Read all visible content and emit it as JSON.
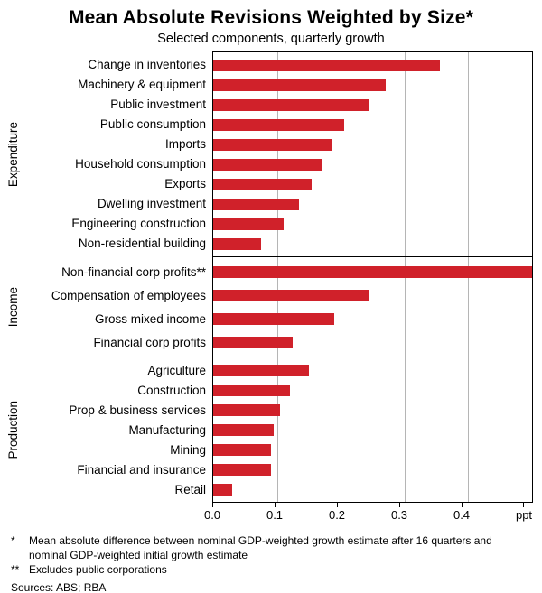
{
  "title": "Mean Absolute Revisions Weighted by Size*",
  "subtitle": "Selected components, quarterly growth",
  "colors": {
    "bar": "#d0212a",
    "grid": "#b5b5b5",
    "frame": "#000000"
  },
  "chart_data": {
    "type": "bar",
    "orientation": "horizontal",
    "xlim": [
      0,
      0.5
    ],
    "xticks": [
      0,
      0.1,
      0.2,
      0.3,
      0.4
    ],
    "xtick_labels": [
      "0.0",
      "0.1",
      "0.2",
      "0.3",
      "0.4"
    ],
    "unit_label": "ppt",
    "grid": true,
    "panels": [
      {
        "name": "Expenditure",
        "categories": [
          "Change in inventories",
          "Machinery & equipment",
          "Public investment",
          "Public consumption",
          "Imports",
          "Household consumption",
          "Exports",
          "Dwelling investment",
          "Engineering construction",
          "Non-residential building"
        ],
        "values": [
          0.355,
          0.27,
          0.245,
          0.205,
          0.185,
          0.17,
          0.155,
          0.135,
          0.11,
          0.075
        ]
      },
      {
        "name": "Income",
        "categories": [
          "Non-financial corp profits**",
          "Compensation of employees",
          "Gross mixed income",
          "Financial corp profits"
        ],
        "values": [
          0.5,
          0.245,
          0.19,
          0.125
        ]
      },
      {
        "name": "Production",
        "categories": [
          "Agriculture",
          "Construction",
          "Prop & business services",
          "Manufacturing",
          "Mining",
          "Financial and insurance",
          "Retail"
        ],
        "values": [
          0.15,
          0.12,
          0.105,
          0.095,
          0.09,
          0.09,
          0.03
        ]
      }
    ]
  },
  "footnotes": [
    {
      "marker": "*",
      "text": "Mean absolute difference between nominal GDP-weighted growth estimate after 16 quarters and nominal GDP-weighted initial growth estimate"
    },
    {
      "marker": "**",
      "text": "Excludes public corporations"
    }
  ],
  "sources": "Sources: ABS; RBA"
}
